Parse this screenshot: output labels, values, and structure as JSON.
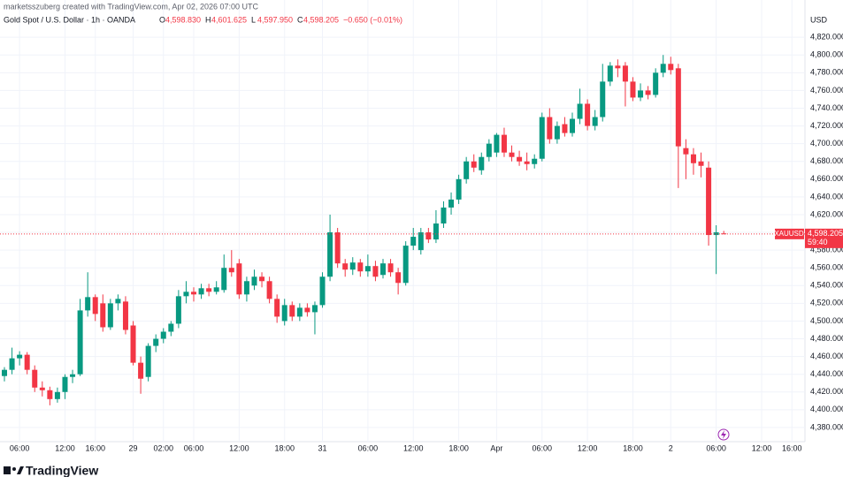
{
  "chart_data": {
    "type": "candlestick",
    "credit": "marketsszuberg created with TradingView.com, Apr 02, 2026 07:00 UTC",
    "symbol_title": "Gold Spot / U.S. Dollar · 1h · OANDA",
    "ohlc_legend": [
      {
        "key": "O",
        "value": 4598.83,
        "label": "4,598.830"
      },
      {
        "key": "H",
        "value": 4601.625,
        "label": "4,601.625"
      },
      {
        "key": "L",
        "value": 4597.95,
        "label": "4,597.950"
      },
      {
        "key": "C",
        "value": 4598.205,
        "label": "4,598.205"
      }
    ],
    "change": "−0.650 (−0.01%)",
    "currency": "USD",
    "symbol": "XAUUSD",
    "last_price": {
      "value": 4598.205,
      "label": "4,598.205"
    },
    "countdown": "59:40",
    "brand": "TradingView",
    "up_color": "#089981",
    "down_color": "#f23645",
    "grid": true,
    "categories": [
      null,
      null,
      "06:00",
      null,
      null,
      null,
      null,
      null,
      "12:00",
      null,
      null,
      null,
      "16:00",
      null,
      null,
      null,
      null,
      "29",
      null,
      null,
      null,
      "02:00",
      null,
      null,
      null,
      "06:00",
      null,
      null,
      null,
      null,
      null,
      "12:00",
      null,
      null,
      null,
      null,
      null,
      "18:00",
      null,
      null,
      null,
      null,
      "31",
      null,
      null,
      null,
      null,
      null,
      "06:00",
      null,
      null,
      null,
      null,
      null,
      "12:00",
      null,
      null,
      null,
      null,
      null,
      "18:00",
      null,
      null,
      null,
      null,
      "Apr",
      null,
      null,
      null,
      null,
      null,
      "06:00",
      null,
      null,
      null,
      null,
      null,
      "12:00",
      null,
      null,
      null,
      null,
      null,
      "18:00",
      null,
      null,
      null,
      null,
      "2",
      null,
      null,
      null,
      null,
      null,
      "06:00",
      null,
      null,
      null,
      null,
      null,
      "12:00",
      null,
      null,
      null,
      "16:00",
      null
    ],
    "open": [
      4438,
      4445,
      4458,
      4462,
      4445,
      4425,
      4422,
      4412,
      4420,
      4437,
      4440,
      4512,
      4527,
      4520,
      4493,
      4520,
      4522,
      4495,
      4453,
      4437,
      4472,
      4480,
      4488,
      4497,
      4528,
      4533,
      4530,
      4537,
      4533,
      4535,
      4560,
      4565,
      4530,
      4540,
      4550,
      4545,
      4525,
      4500,
      4518,
      4505,
      4515,
      4510,
      4518,
      4550,
      4600,
      4565,
      4558,
      4566,
      4556,
      4562,
      4552,
      4565,
      4555,
      4543,
      4585,
      4580,
      4600,
      4592,
      4610,
      4628,
      4637,
      4660,
      4680,
      4670,
      4685,
      4690,
      4710,
      4690,
      4685,
      4680,
      4677,
      4683,
      4730,
      4705,
      4722,
      4712,
      4728,
      4745,
      4720,
      4730,
      4770,
      4788,
      4788,
      4770,
      4752,
      4760,
      4755,
      4780,
      4790,
      4785,
      4695,
      4688,
      4680,
      4673,
      4597,
      4598.83,
      null,
      null,
      null,
      null,
      null,
      null,
      null,
      null,
      null,
      null
    ],
    "high": [
      4448,
      4470,
      4466,
      4465,
      4450,
      4432,
      4426,
      4425,
      4440,
      4445,
      4525,
      4555,
      4530,
      4530,
      4525,
      4530,
      4528,
      4500,
      4460,
      4475,
      4485,
      4492,
      4500,
      4535,
      4545,
      4538,
      4542,
      4542,
      4545,
      4575,
      4580,
      4570,
      4550,
      4558,
      4555,
      4550,
      4530,
      4525,
      4522,
      4520,
      4520,
      4522,
      4555,
      4620,
      4605,
      4570,
      4572,
      4570,
      4575,
      4568,
      4570,
      4570,
      4560,
      4590,
      4605,
      4605,
      4605,
      4625,
      4635,
      4645,
      4665,
      4685,
      4688,
      4690,
      4705,
      4712,
      4718,
      4698,
      4692,
      4690,
      4688,
      4735,
      4740,
      4725,
      4730,
      4735,
      4762,
      4750,
      4738,
      4790,
      4792,
      4795,
      4792,
      4775,
      4768,
      4765,
      4785,
      4800,
      4798,
      4790,
      4705,
      4695,
      4690,
      4680,
      4608,
      4601.625,
      null,
      null,
      null,
      null,
      null,
      null,
      null,
      null,
      null,
      null
    ],
    "low": [
      4432,
      4440,
      4450,
      4440,
      4420,
      4415,
      4405,
      4408,
      4412,
      4430,
      4438,
      4505,
      4500,
      4488,
      4490,
      4512,
      4485,
      4450,
      4418,
      4432,
      4465,
      4475,
      4483,
      4492,
      4520,
      4522,
      4525,
      4528,
      4530,
      4532,
      4550,
      4525,
      4522,
      4535,
      4538,
      4520,
      4498,
      4495,
      4500,
      4500,
      4505,
      4485,
      4515,
      4545,
      4560,
      4550,
      4552,
      4550,
      4550,
      4545,
      4548,
      4550,
      4530,
      4540,
      4580,
      4575,
      4588,
      4588,
      4605,
      4620,
      4632,
      4655,
      4668,
      4665,
      4680,
      4685,
      4685,
      4680,
      4675,
      4670,
      4672,
      4680,
      4700,
      4700,
      4708,
      4708,
      4722,
      4715,
      4715,
      4725,
      4765,
      4775,
      4742,
      4748,
      4748,
      4750,
      4752,
      4775,
      4778,
      4650,
      4660,
      4665,
      4662,
      4585,
      4553,
      4597.95,
      null,
      null,
      null,
      null,
      null,
      null,
      null,
      null,
      null,
      null
    ],
    "close": [
      4445,
      4458,
      4462,
      4445,
      4425,
      4422,
      4412,
      4420,
      4437,
      4440,
      4512,
      4527,
      4508,
      4493,
      4520,
      4525,
      4490,
      4453,
      4435,
      4472,
      4480,
      4488,
      4497,
      4528,
      4533,
      4530,
      4537,
      4533,
      4538,
      4560,
      4555,
      4530,
      4545,
      4550,
      4545,
      4525,
      4505,
      4518,
      4505,
      4515,
      4510,
      4518,
      4550,
      4600,
      4565,
      4558,
      4566,
      4556,
      4562,
      4550,
      4565,
      4555,
      4543,
      4585,
      4595,
      4600,
      4592,
      4610,
      4628,
      4637,
      4660,
      4680,
      4673,
      4685,
      4700,
      4710,
      4690,
      4685,
      4680,
      4677,
      4683,
      4730,
      4705,
      4720,
      4712,
      4728,
      4745,
      4720,
      4730,
      4770,
      4788,
      4785,
      4770,
      4752,
      4760,
      4755,
      4780,
      4790,
      4783,
      4697,
      4688,
      4678,
      4675,
      4597,
      4600,
      4598.205,
      null,
      null,
      null,
      null,
      null,
      null,
      null,
      null,
      null,
      null
    ],
    "ylim": [
      4364,
      4862
    ],
    "yticks": [
      {
        "value": 4380,
        "label": "4,380.000"
      },
      {
        "value": 4400,
        "label": "4,400.000"
      },
      {
        "value": 4420,
        "label": "4,420.000"
      },
      {
        "value": 4440,
        "label": "4,440.000"
      },
      {
        "value": 4460,
        "label": "4,460.000"
      },
      {
        "value": 4480,
        "label": "4,480.000"
      },
      {
        "value": 4500,
        "label": "4,500.000"
      },
      {
        "value": 4520,
        "label": "4,520.000"
      },
      {
        "value": 4540,
        "label": "4,540.000"
      },
      {
        "value": 4560,
        "label": "4,560.000"
      },
      {
        "value": 4580,
        "label": "4,580.000"
      },
      {
        "value": 4600,
        "label": "4,600.000"
      },
      {
        "value": 4620,
        "label": "4,620.000"
      },
      {
        "value": 4640,
        "label": "4,640.000"
      },
      {
        "value": 4660,
        "label": "4,660.000"
      },
      {
        "value": 4680,
        "label": "4,680.000"
      },
      {
        "value": 4700,
        "label": "4,700.000"
      },
      {
        "value": 4720,
        "label": "4,720.000"
      },
      {
        "value": 4740,
        "label": "4,740.000"
      },
      {
        "value": 4760,
        "label": "4,760.000"
      },
      {
        "value": 4780,
        "label": "4,780.000"
      },
      {
        "value": 4800,
        "label": "4,800.000"
      },
      {
        "value": 4820,
        "label": "4,820.000"
      }
    ]
  }
}
